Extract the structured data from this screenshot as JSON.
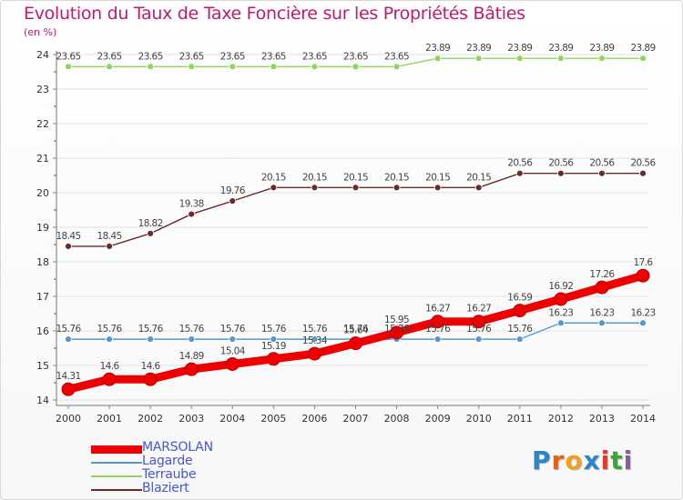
{
  "title": "Evolution du Taux de Taxe Foncière sur les Propriétés Bâties",
  "unit_label": "(en %)",
  "logo": {
    "text": "Proxiti",
    "letter_colors": [
      "#2a86c8",
      "#e0611c",
      "#f0a020",
      "#2a86c8",
      "#e53a2a",
      "#3aa537",
      "#8b5aa6"
    ]
  },
  "chart_data": {
    "type": "line",
    "title": "Evolution du Taux de Taxe Foncière sur les Propriétés Bâties",
    "xlabel": "",
    "ylabel": "(en %)",
    "x": [
      "2000",
      "2001",
      "2002",
      "2003",
      "2004",
      "2005",
      "2006",
      "2007",
      "2008",
      "2009",
      "2010",
      "2011",
      "2012",
      "2013",
      "2014"
    ],
    "ylim": [
      14,
      24
    ],
    "yticks": [
      "14",
      "15",
      "16",
      "17",
      "18",
      "19",
      "20",
      "21",
      "22",
      "23",
      "24"
    ],
    "legend_position": "bottom-left",
    "series": [
      {
        "name": "MARSOLAN",
        "color": "#ee0000",
        "values": [
          14.31,
          14.6,
          14.6,
          14.89,
          15.04,
          15.19,
          15.34,
          15.64,
          15.95,
          16.27,
          16.27,
          16.59,
          16.92,
          17.26,
          17.6
        ],
        "labels": [
          "14.31",
          "14.6",
          "14.6",
          "14.89",
          "15.04",
          "15.19",
          "15.34",
          "15.64",
          "15.95",
          "16.27",
          "16.27",
          "16.59",
          "16.92",
          "17.26",
          "17.6"
        ]
      },
      {
        "name": "Lagarde",
        "color": "#5a97c9",
        "values": [
          15.76,
          15.76,
          15.76,
          15.76,
          15.76,
          15.76,
          15.76,
          15.76,
          15.76,
          15.76,
          15.76,
          15.76,
          16.23,
          16.23,
          16.23
        ],
        "labels": [
          "15.76",
          "15.76",
          "15.76",
          "15.76",
          "15.76",
          "15.76",
          "15.76",
          "15.76",
          "15.76",
          "15.76",
          "15.76",
          "15.76",
          "16.23",
          "16.23",
          "16.23"
        ]
      },
      {
        "name": "Terraube",
        "color": "#8fd660",
        "values": [
          23.65,
          23.65,
          23.65,
          23.65,
          23.65,
          23.65,
          23.65,
          23.65,
          23.65,
          23.89,
          23.89,
          23.89,
          23.89,
          23.89,
          23.89
        ],
        "labels": [
          "23.65",
          "23.65",
          "23.65",
          "23.65",
          "23.65",
          "23.65",
          "23.65",
          "23.65",
          "23.65",
          "23.89",
          "23.89",
          "23.89",
          "23.89",
          "23.89",
          "23.89"
        ]
      },
      {
        "name": "Blaziert",
        "color": "#6b2a2a",
        "values": [
          18.45,
          18.45,
          18.82,
          19.38,
          19.76,
          20.15,
          20.15,
          20.15,
          20.15,
          20.15,
          20.15,
          20.56,
          20.56,
          20.56,
          20.56
        ],
        "labels": [
          "18.45",
          "18.45",
          "18.82",
          "19.38",
          "19.76",
          "20.15",
          "20.15",
          "20.15",
          "20.15",
          "20.15",
          "20.15",
          "20.56",
          "20.56",
          "20.56",
          "20.56"
        ]
      }
    ]
  }
}
